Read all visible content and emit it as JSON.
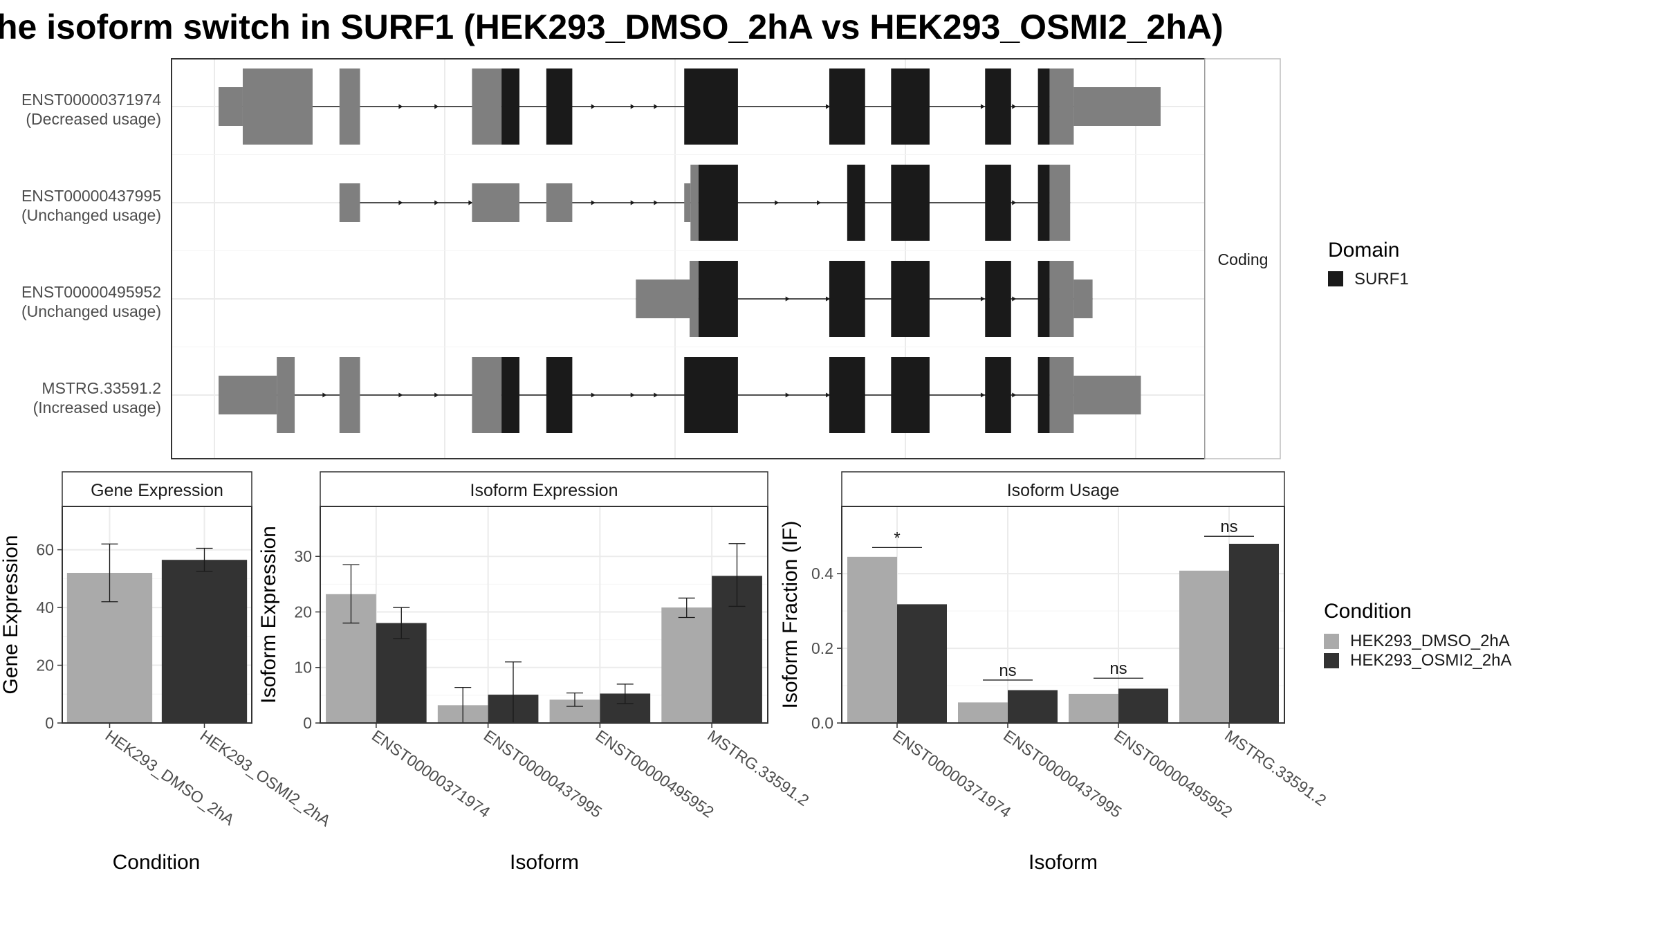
{
  "title": "he isoform switch in SURF1 (HEK293_DMSO_2hA vs HEK293_OSMI2_2hA)",
  "colors": {
    "exon_noncoding": "#7f7f7f",
    "exon_domain": "#1a1a1a",
    "dmso": "#aaaaaa",
    "osmi2": "#333333",
    "grid": "#ebebeb",
    "panel_border": "#333333",
    "strip_bg": "#ffffff",
    "intron": "#1a1a1a"
  },
  "structure": {
    "facet_label": "Coding",
    "domain_legend": {
      "title": "Domain",
      "items": [
        {
          "label": "SURF1",
          "color": "#1a1a1a"
        }
      ]
    },
    "transcripts": [
      {
        "id": "ENST00000371974",
        "usage": "(Decreased usage)",
        "exons": [
          {
            "start": 0,
            "end": 27,
            "kind": "utr"
          },
          {
            "start": 27,
            "end": 105,
            "kind": "cds_nc"
          },
          {
            "start": 135,
            "end": 158,
            "kind": "cds_nc"
          },
          {
            "start": 283,
            "end": 316,
            "kind": "cds_nc"
          },
          {
            "start": 316,
            "end": 336,
            "kind": "domain"
          },
          {
            "start": 366,
            "end": 395,
            "kind": "domain"
          },
          {
            "start": 520,
            "end": 580,
            "kind": "domain"
          },
          {
            "start": 682,
            "end": 722,
            "kind": "domain"
          },
          {
            "start": 751,
            "end": 794,
            "kind": "domain"
          },
          {
            "start": 856,
            "end": 885,
            "kind": "domain"
          },
          {
            "start": 915,
            "end": 928,
            "kind": "domain"
          },
          {
            "start": 928,
            "end": 955,
            "kind": "cds_nc"
          },
          {
            "start": 955,
            "end": 1052,
            "kind": "utr"
          }
        ],
        "arrows": [
          205,
          245,
          420,
          464,
          490,
          682,
          855,
          890
        ]
      },
      {
        "id": "ENST00000437995",
        "usage": "(Unchanged usage)",
        "exons": [
          {
            "start": 135,
            "end": 158,
            "kind": "utr"
          },
          {
            "start": 283,
            "end": 336,
            "kind": "utr"
          },
          {
            "start": 366,
            "end": 395,
            "kind": "utr"
          },
          {
            "start": 520,
            "end": 527,
            "kind": "utr"
          },
          {
            "start": 527,
            "end": 536,
            "kind": "cds_nc"
          },
          {
            "start": 536,
            "end": 580,
            "kind": "domain"
          },
          {
            "start": 702,
            "end": 722,
            "kind": "domain"
          },
          {
            "start": 751,
            "end": 794,
            "kind": "domain"
          },
          {
            "start": 856,
            "end": 885,
            "kind": "domain"
          },
          {
            "start": 915,
            "end": 928,
            "kind": "domain"
          },
          {
            "start": 928,
            "end": 951,
            "kind": "cds_nc"
          }
        ],
        "arrows": [
          205,
          245,
          283,
          420,
          464,
          490,
          625,
          672,
          890
        ]
      },
      {
        "id": "ENST00000495952",
        "usage": "(Unchanged usage)",
        "exons": [
          {
            "start": 466,
            "end": 526,
            "kind": "utr"
          },
          {
            "start": 526,
            "end": 536,
            "kind": "cds_nc"
          },
          {
            "start": 536,
            "end": 580,
            "kind": "domain"
          },
          {
            "start": 682,
            "end": 722,
            "kind": "domain"
          },
          {
            "start": 751,
            "end": 794,
            "kind": "domain"
          },
          {
            "start": 856,
            "end": 885,
            "kind": "domain"
          },
          {
            "start": 915,
            "end": 928,
            "kind": "domain"
          },
          {
            "start": 928,
            "end": 955,
            "kind": "cds_nc"
          },
          {
            "start": 955,
            "end": 976,
            "kind": "utr"
          }
        ],
        "arrows": [
          637,
          682,
          855,
          890
        ]
      },
      {
        "id": "MSTRG.33591.2",
        "usage": "(Increased usage)",
        "exons": [
          {
            "start": 0,
            "end": 65,
            "kind": "utr"
          },
          {
            "start": 65,
            "end": 85,
            "kind": "cds_nc"
          },
          {
            "start": 135,
            "end": 158,
            "kind": "cds_nc"
          },
          {
            "start": 283,
            "end": 316,
            "kind": "cds_nc"
          },
          {
            "start": 316,
            "end": 336,
            "kind": "domain"
          },
          {
            "start": 366,
            "end": 395,
            "kind": "domain"
          },
          {
            "start": 520,
            "end": 580,
            "kind": "domain"
          },
          {
            "start": 682,
            "end": 722,
            "kind": "domain"
          },
          {
            "start": 751,
            "end": 794,
            "kind": "domain"
          },
          {
            "start": 856,
            "end": 885,
            "kind": "domain"
          },
          {
            "start": 915,
            "end": 928,
            "kind": "domain"
          },
          {
            "start": 928,
            "end": 955,
            "kind": "cds_nc"
          },
          {
            "start": 955,
            "end": 1030,
            "kind": "utr"
          }
        ],
        "arrows": [
          85,
          120,
          205,
          245,
          420,
          464,
          490,
          637,
          682,
          855,
          890
        ]
      }
    ]
  },
  "chart_data": [
    {
      "panel": "Gene Expression",
      "type": "bar",
      "title": "Gene Expression",
      "xlabel": "Condition",
      "ylabel": "Gene Expression",
      "ylim": [
        0,
        75
      ],
      "yticks": [
        0,
        20,
        40,
        60
      ],
      "categories": [
        "HEK293_DMSO_2hA",
        "HEK293_OSMI2_2hA"
      ],
      "values": [
        52,
        56.5
      ],
      "error_low": [
        42,
        52.5
      ],
      "error_high": [
        62,
        60.5
      ],
      "bar_colors": [
        "#aaaaaa",
        "#333333"
      ]
    },
    {
      "panel": "Isoform Expression",
      "type": "bar",
      "title": "Isoform Expression",
      "xlabel": "Isoform",
      "ylabel": "Isoform Expression",
      "ylim": [
        0,
        39
      ],
      "yticks": [
        0,
        10,
        20,
        30
      ],
      "categories": [
        "ENST00000371974",
        "ENST00000437995",
        "ENST00000495952",
        "MSTRG.33591.2"
      ],
      "series": [
        {
          "name": "HEK293_DMSO_2hA",
          "values": [
            23.2,
            3.2,
            4.2,
            20.8
          ],
          "error_low": [
            18,
            0,
            3,
            19
          ],
          "error_high": [
            28.5,
            6.4,
            5.4,
            22.5
          ],
          "color": "#aaaaaa"
        },
        {
          "name": "HEK293_OSMI2_2hA",
          "values": [
            18,
            5.1,
            5.3,
            26.5
          ],
          "error_low": [
            15.2,
            0,
            3.5,
            21
          ],
          "error_high": [
            20.8,
            11,
            7,
            32.3
          ],
          "color": "#333333"
        }
      ]
    },
    {
      "panel": "Isoform Usage",
      "type": "bar",
      "title": "Isoform Usage",
      "xlabel": "Isoform",
      "ylabel": "Isoform Fraction (IF)",
      "ylim": [
        0,
        0.58
      ],
      "yticks": [
        "0.0",
        "0.2",
        "0.4"
      ],
      "ytick_values": [
        0,
        0.2,
        0.4
      ],
      "categories": [
        "ENST00000371974",
        "ENST00000437995",
        "ENST00000495952",
        "MSTRG.33591.2"
      ],
      "series": [
        {
          "name": "HEK293_DMSO_2hA",
          "values": [
            0.445,
            0.055,
            0.078,
            0.408
          ],
          "color": "#aaaaaa"
        },
        {
          "name": "HEK293_OSMI2_2hA",
          "values": [
            0.318,
            0.088,
            0.092,
            0.48
          ],
          "color": "#333333"
        }
      ],
      "significance": [
        {
          "label": "*",
          "level": 0.47
        },
        {
          "label": "ns",
          "level": 0.115
        },
        {
          "label": "ns",
          "level": 0.12
        },
        {
          "label": "ns",
          "level": 0.5
        }
      ]
    }
  ],
  "condition_legend": {
    "title": "Condition",
    "items": [
      {
        "label": "HEK293_DMSO_2hA",
        "color": "#aaaaaa"
      },
      {
        "label": "HEK293_OSMI2_2hA",
        "color": "#333333"
      }
    ]
  }
}
